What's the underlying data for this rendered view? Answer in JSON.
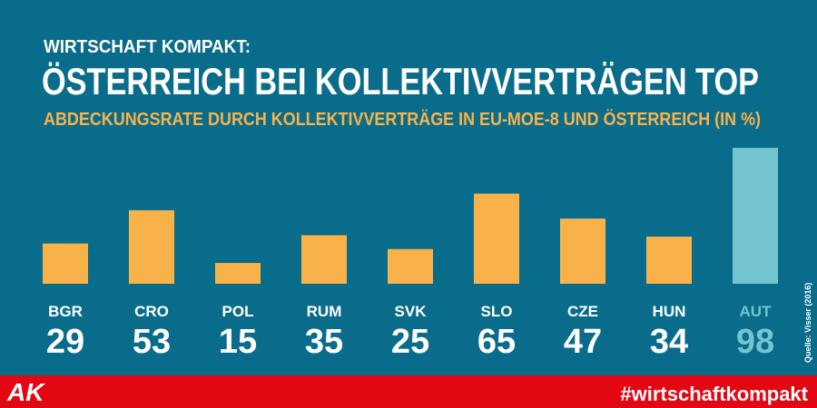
{
  "chart_data": {
    "type": "bar",
    "supertitle": "WIRTSCHAFT KOMPAKT:",
    "title": "ÖSTERREICH BEI KOLLEKTIVVERTRÄGEN TOP",
    "subtitle": "ABDECKUNGSRATE DURCH KOLLEKTIVVERTRÄGE IN EU-MOE-8 UND ÖSTERREICH (IN %)",
    "categories": [
      "BGR",
      "CRO",
      "POL",
      "RUM",
      "SVK",
      "SLO",
      "CZE",
      "HUN",
      "AUT"
    ],
    "values": [
      29,
      53,
      15,
      35,
      25,
      65,
      47,
      34,
      98
    ],
    "colors": [
      "#f9b24a",
      "#f9b24a",
      "#f9b24a",
      "#f9b24a",
      "#f9b24a",
      "#f9b24a",
      "#f9b24a",
      "#f9b24a",
      "#74c4cf"
    ],
    "label_colors": [
      "#ffffff",
      "#ffffff",
      "#ffffff",
      "#ffffff",
      "#ffffff",
      "#ffffff",
      "#ffffff",
      "#ffffff",
      "#74c4cf"
    ],
    "source": "Quelle: Visser (2016)",
    "logo": "AK",
    "hashtag": "#wirtschaftkompakt"
  }
}
